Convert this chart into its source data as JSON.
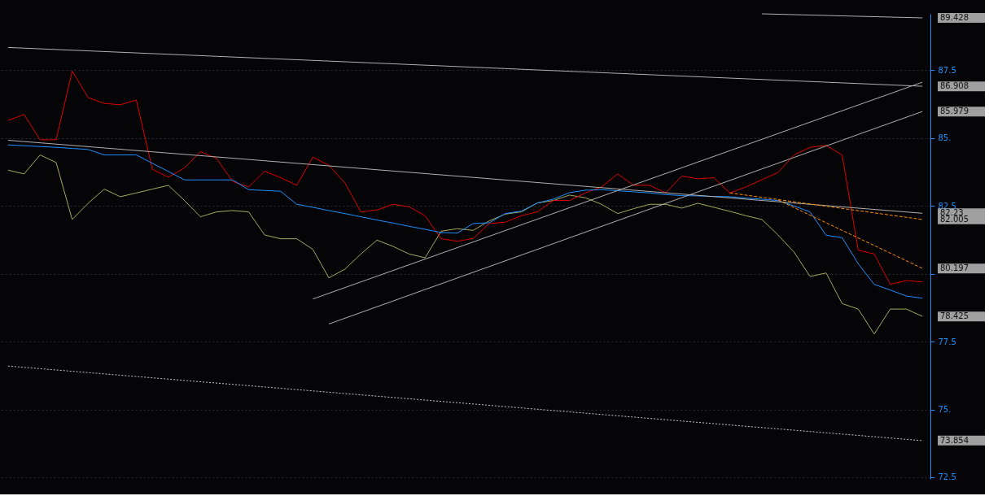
{
  "chart_data": {
    "type": "line",
    "categories": [
      null,
      null,
      null,
      null,
      null,
      null,
      null,
      null,
      null,
      null,
      null,
      null,
      null,
      null,
      null,
      null,
      null,
      null,
      null,
      null,
      null,
      null,
      null,
      null,
      null,
      null,
      null,
      null,
      null,
      null,
      null,
      null,
      null,
      null,
      null,
      null,
      null,
      null,
      null,
      null,
      null,
      null,
      null,
      null,
      null,
      null,
      null,
      null,
      null,
      null,
      null,
      null,
      null,
      null,
      null,
      null,
      null,
      null
    ],
    "ylim": [
      72.44,
      89.58
    ],
    "yticks": [
      72.5,
      {
        "value": 75,
        "label": "75."
      },
      77.5,
      {
        "value": 80,
        "label": null
      },
      82.5,
      {
        "value": 85,
        "label": "85."
      },
      87.5
    ],
    "tick_labels": "y",
    "grid": "y",
    "series": [
      {
        "color": "#a8a860",
        "line_style": "solid",
        "values": [
          83.82,
          83.68,
          84.38,
          84.1,
          82.0,
          82.6,
          83.12,
          82.84,
          82.98,
          83.12,
          83.26,
          82.7,
          82.1,
          82.28,
          82.33,
          82.28,
          81.43,
          81.29,
          81.29,
          80.9,
          79.85,
          80.17,
          80.73,
          81.24,
          81.01,
          80.73,
          80.59,
          81.57,
          81.66,
          81.6,
          81.95,
          82.2,
          82.28,
          82.61,
          82.7,
          82.9,
          82.8,
          82.56,
          82.22,
          82.4,
          82.56,
          82.56,
          82.42,
          82.6,
          82.45,
          82.3,
          82.14,
          82.0,
          81.43,
          80.8,
          79.9,
          80.03,
          78.9,
          78.7,
          77.78,
          78.7,
          78.7,
          78.43
        ]
      },
      {
        "color": "#e00000",
        "line_style": "solid",
        "values": [
          85.65,
          85.87,
          84.94,
          84.94,
          87.47,
          86.49,
          86.28,
          86.23,
          86.4,
          83.85,
          83.56,
          83.9,
          84.5,
          84.25,
          83.4,
          83.2,
          83.78,
          83.54,
          83.26,
          84.3,
          84.0,
          83.35,
          82.28,
          82.35,
          82.56,
          82.47,
          82.14,
          81.29,
          81.2,
          81.3,
          81.85,
          81.9,
          82.14,
          82.28,
          82.7,
          82.7,
          82.98,
          83.2,
          83.68,
          83.26,
          83.26,
          82.98,
          83.6,
          83.5,
          83.54,
          82.98,
          83.2,
          83.47,
          83.73,
          84.38,
          84.66,
          84.73,
          84.38,
          80.87,
          80.73,
          79.61,
          79.75,
          79.7
        ]
      },
      {
        "color": "#1e90ff",
        "line_style": "solid",
        "values": [
          84.75,
          84.72,
          84.69,
          84.66,
          84.62,
          84.58,
          84.38,
          84.38,
          84.38,
          84.07,
          83.77,
          83.46,
          83.46,
          83.46,
          83.46,
          83.1,
          83.07,
          83.04,
          82.56,
          82.45,
          82.33,
          82.22,
          82.1,
          81.98,
          81.87,
          81.75,
          81.64,
          81.52,
          81.5,
          81.85,
          81.88,
          82.22,
          82.31,
          82.61,
          82.75,
          82.99,
          83.08,
          83.1,
          83.06,
          83.02,
          82.98,
          82.92,
          82.88,
          82.87,
          82.85,
          82.84,
          82.79,
          82.75,
          82.7,
          82.5,
          82.28,
          81.42,
          81.33,
          80.37,
          79.61,
          79.4,
          79.18,
          79.1
        ]
      },
      {
        "color": "#b0b0b0",
        "line_style": "solid",
        "values": [
          null,
          null,
          null,
          null,
          null,
          null,
          null,
          null,
          null,
          null,
          null,
          null,
          null,
          null,
          null,
          null,
          null,
          null,
          null,
          null,
          null,
          null,
          null,
          null,
          null,
          null,
          null,
          null,
          null,
          null,
          null,
          null,
          null,
          null,
          null,
          null,
          null,
          null,
          null,
          null,
          null,
          null,
          null,
          null,
          null,
          null,
          null,
          89.58,
          null,
          null,
          null,
          null,
          null,
          null,
          null,
          null,
          null,
          89.43
        ]
      },
      {
        "color": "#b0b0b0",
        "line_style": "solid",
        "values": [
          88.34,
          null,
          null,
          null,
          null,
          null,
          null,
          null,
          null,
          null,
          null,
          null,
          null,
          null,
          null,
          null,
          null,
          null,
          null,
          null,
          null,
          null,
          null,
          null,
          null,
          null,
          null,
          null,
          null,
          null,
          null,
          null,
          null,
          null,
          null,
          null,
          null,
          null,
          null,
          null,
          null,
          null,
          null,
          null,
          null,
          null,
          null,
          null,
          null,
          null,
          null,
          null,
          null,
          null,
          null,
          null,
          null,
          86.91
        ]
      },
      {
        "color": "#b0b0b0",
        "line_style": "solid",
        "values": [
          84.92,
          null,
          null,
          null,
          null,
          null,
          null,
          null,
          null,
          null,
          null,
          null,
          null,
          null,
          null,
          null,
          null,
          null,
          null,
          null,
          null,
          null,
          null,
          null,
          null,
          null,
          null,
          null,
          null,
          null,
          null,
          null,
          null,
          null,
          null,
          null,
          null,
          null,
          null,
          null,
          null,
          null,
          null,
          null,
          null,
          null,
          null,
          null,
          null,
          null,
          null,
          null,
          null,
          null,
          null,
          null,
          null,
          82.23
        ]
      },
      {
        "color": "#b0b0b0",
        "line_style": "solid",
        "values": [
          null,
          null,
          null,
          null,
          null,
          null,
          null,
          null,
          null,
          null,
          null,
          null,
          null,
          null,
          null,
          null,
          null,
          null,
          null,
          79.07,
          null,
          null,
          null,
          null,
          null,
          null,
          null,
          null,
          null,
          null,
          null,
          null,
          null,
          null,
          null,
          null,
          null,
          null,
          null,
          null,
          null,
          null,
          null,
          null,
          null,
          null,
          null,
          null,
          null,
          null,
          null,
          null,
          null,
          null,
          null,
          null,
          null,
          87.06
        ]
      },
      {
        "color": "#b0b0b0",
        "line_style": "solid",
        "values": [
          null,
          null,
          null,
          null,
          null,
          null,
          null,
          null,
          null,
          null,
          null,
          null,
          null,
          null,
          null,
          null,
          null,
          null,
          null,
          null,
          78.15,
          null,
          null,
          null,
          null,
          null,
          null,
          null,
          null,
          null,
          null,
          null,
          null,
          null,
          null,
          null,
          null,
          null,
          null,
          null,
          null,
          null,
          null,
          null,
          null,
          null,
          null,
          null,
          null,
          null,
          null,
          null,
          null,
          null,
          null,
          null,
          null,
          85.98
        ]
      },
      {
        "color": "#c8c8c8",
        "line_style": "dotted",
        "values": [
          76.6,
          null,
          null,
          null,
          null,
          null,
          null,
          null,
          null,
          null,
          null,
          null,
          null,
          null,
          null,
          null,
          null,
          null,
          null,
          null,
          null,
          null,
          null,
          null,
          null,
          null,
          null,
          null,
          null,
          null,
          null,
          null,
          null,
          null,
          null,
          null,
          null,
          null,
          null,
          null,
          null,
          null,
          null,
          null,
          null,
          null,
          null,
          null,
          null,
          null,
          null,
          null,
          null,
          null,
          null,
          null,
          null,
          73.85
        ]
      },
      {
        "color": "#ff8c00",
        "line_style": "dashed",
        "values": [
          null,
          null,
          null,
          null,
          null,
          null,
          null,
          null,
          null,
          null,
          null,
          null,
          null,
          null,
          null,
          null,
          null,
          null,
          null,
          null,
          null,
          null,
          null,
          null,
          null,
          null,
          null,
          null,
          null,
          null,
          null,
          null,
          null,
          null,
          null,
          null,
          null,
          null,
          null,
          null,
          null,
          null,
          null,
          null,
          null,
          82.98,
          null,
          null,
          null,
          null,
          null,
          null,
          null,
          null,
          null,
          null,
          null,
          82.0
        ]
      },
      {
        "color": "#ff8c00",
        "line_style": "dashed",
        "values": [
          null,
          null,
          null,
          null,
          null,
          null,
          null,
          null,
          null,
          null,
          null,
          null,
          null,
          null,
          null,
          null,
          null,
          null,
          null,
          null,
          null,
          null,
          null,
          null,
          null,
          null,
          null,
          null,
          null,
          null,
          null,
          null,
          null,
          null,
          null,
          null,
          null,
          null,
          null,
          null,
          null,
          null,
          null,
          null,
          null,
          null,
          null,
          null,
          82.72,
          null,
          null,
          null,
          null,
          null,
          null,
          null,
          null,
          80.2
        ]
      }
    ],
    "annotations": [
      "89.428",
      "86.908",
      "85.979",
      "82.23",
      "82.005",
      "80.197",
      "78.425",
      "73.854"
    ]
  }
}
